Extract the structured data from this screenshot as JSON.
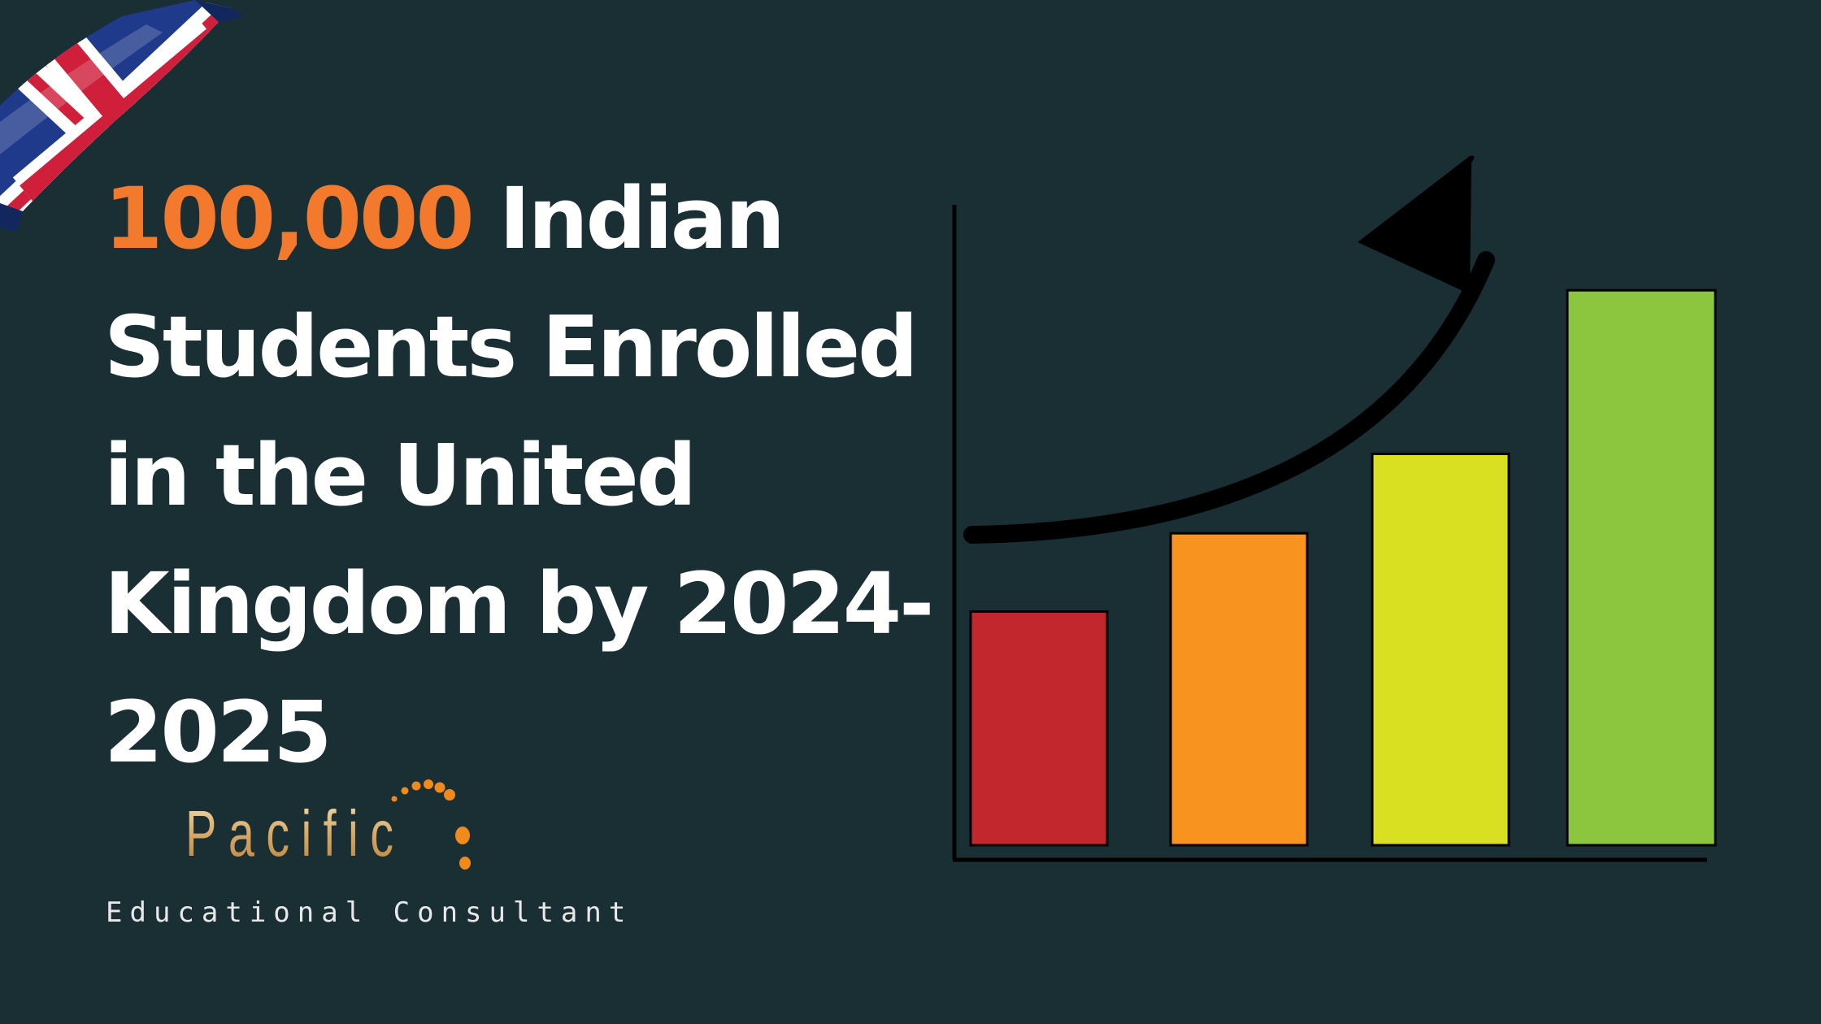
{
  "headline": {
    "number": "100,000",
    "line1_rest": " Indian",
    "line2": "Students Enrolled",
    "line3": "in the United",
    "line4": "Kingdom by 2024-",
    "line5": "2025"
  },
  "logo": {
    "name": "Pacific",
    "tagline": "Educational Consultant"
  },
  "colors": {
    "background": "#1a2f33",
    "accent": "#f37a2c",
    "text": "#ffffff"
  },
  "chart_data": {
    "type": "bar",
    "values": [
      200,
      267,
      335,
      475
    ],
    "bar_colors": [
      "#c1272d",
      "#f7931e",
      "#d9e021",
      "#8cc63f"
    ],
    "ylim": [
      0,
      480
    ],
    "trend_arrow": "up"
  }
}
